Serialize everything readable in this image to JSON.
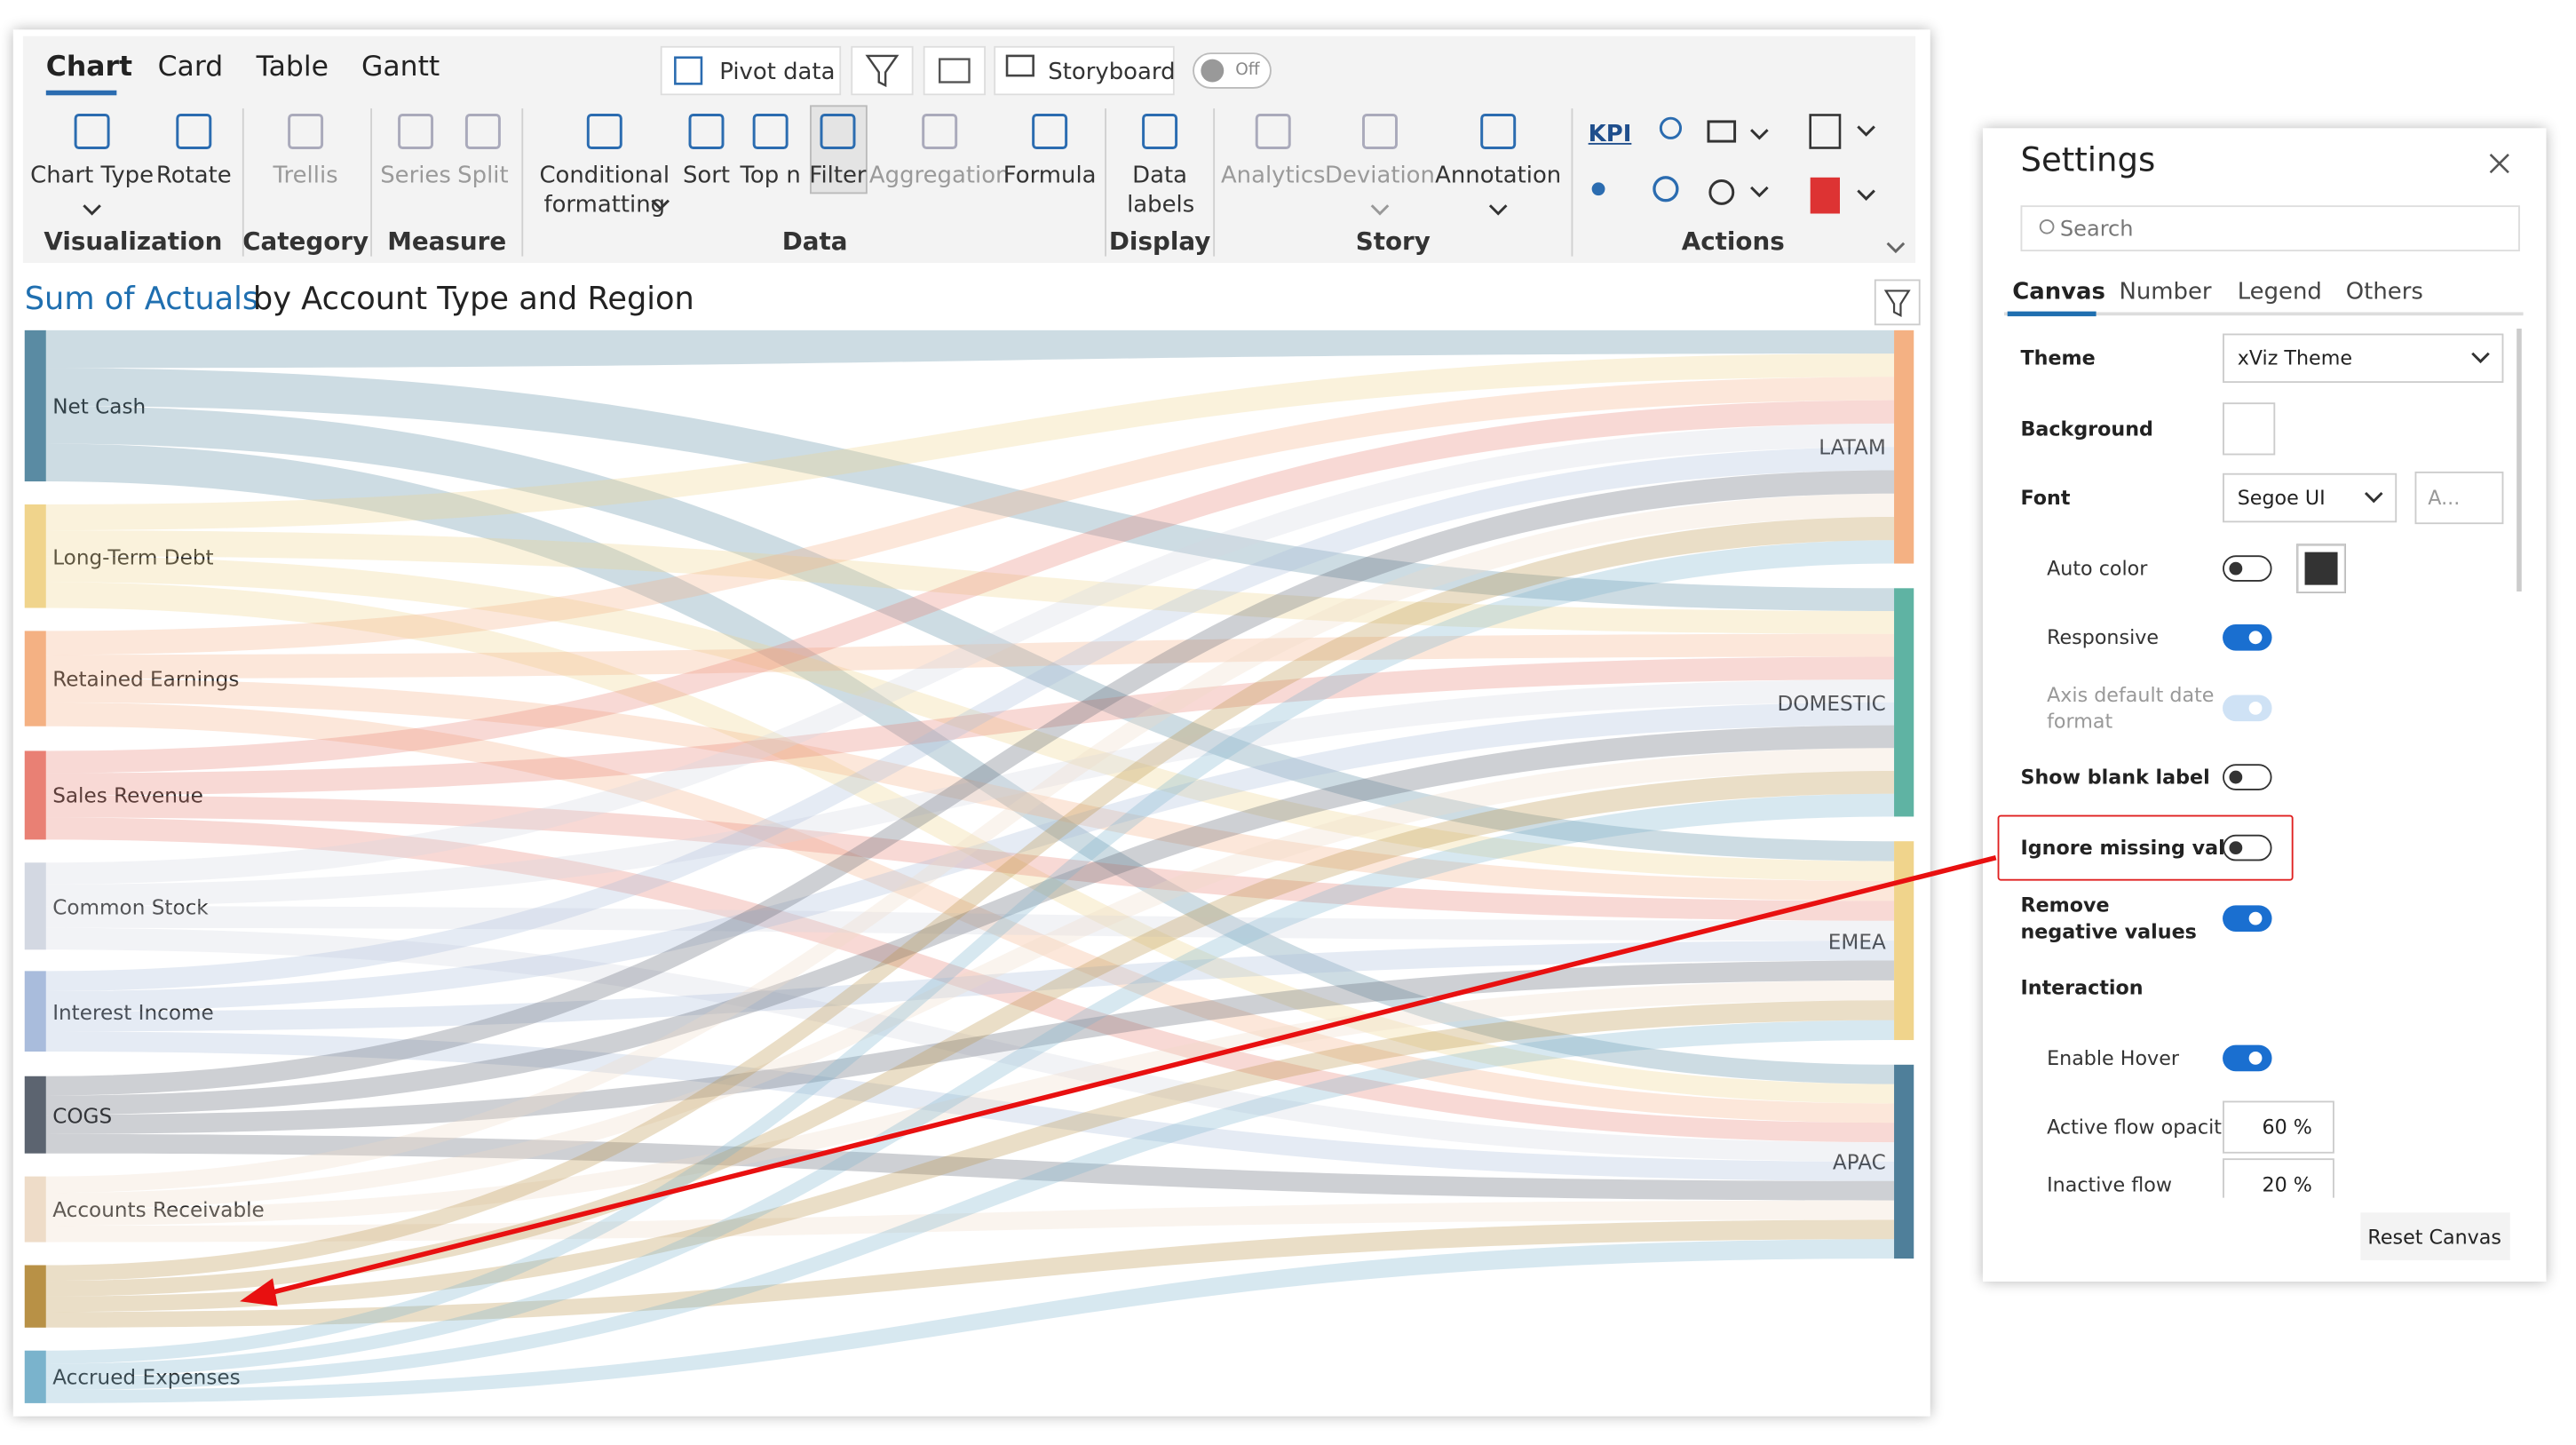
{
  "ribbon": {
    "tabs": [
      "Chart",
      "Card",
      "Table",
      "Gantt"
    ],
    "pivot": "Pivot data",
    "storyboard": "Storyboard",
    "toggle": "Off",
    "items": [
      {
        "label": "Chart Type"
      },
      {
        "label": "Rotate"
      },
      {
        "label": "Trellis",
        "disabled": true
      },
      {
        "label": "Series",
        "disabled": true
      },
      {
        "label": "Split",
        "disabled": true
      },
      {
        "label": "Conditional formatting"
      },
      {
        "label": "Sort"
      },
      {
        "label": "Top n"
      },
      {
        "label": "Filter"
      },
      {
        "label": "Aggregation",
        "disabled": true
      },
      {
        "label": "Formula"
      },
      {
        "label": "Data labels"
      },
      {
        "label": "Analytics",
        "disabled": true
      },
      {
        "label": "Deviation",
        "disabled": true
      },
      {
        "label": "Annotation"
      }
    ],
    "groups": [
      "Visualization",
      "Category",
      "Measure",
      "Data",
      "Display",
      "Story",
      "Actions"
    ],
    "kpi": "KPI"
  },
  "chart": {
    "title_highlight": "Sum of Actuals",
    "title_rest": "by Account Type and Region",
    "sources": [
      {
        "label": "Net Cash",
        "color": "#5a8ba3"
      },
      {
        "label": "Long-Term Debt",
        "color": "#f0d48c"
      },
      {
        "label": "Retained Earnings",
        "color": "#f4b183"
      },
      {
        "label": "Sales Revenue",
        "color": "#e98074"
      },
      {
        "label": "Common Stock",
        "color": "#d3d8e2"
      },
      {
        "label": "Interest Income",
        "color": "#a9bcdc"
      },
      {
        "label": "COGS",
        "color": "#5c6470"
      },
      {
        "label": "Accounts Receivable",
        "color": "#eedcc8"
      },
      {
        "label": null,
        "color": "#b89146"
      },
      {
        "label": "Accrued Expenses",
        "color": "#7ab3cc"
      }
    ],
    "targets": [
      {
        "label": "LATAM",
        "color": "#f4b183"
      },
      {
        "label": "DOMESTIC",
        "color": "#5fb3a3"
      },
      {
        "label": "EMEA",
        "color": "#f0d48c"
      },
      {
        "label": "APAC",
        "color": "#4f7f9a"
      }
    ]
  },
  "settings": {
    "title": "Settings",
    "search": "Search",
    "tabs": [
      "Canvas",
      "Number",
      "Legend",
      "Others"
    ],
    "rows": [
      {
        "label": "Theme",
        "select": "xViz Theme"
      },
      {
        "label": "Background"
      },
      {
        "label": "Font",
        "select": "Segoe UI",
        "input": "A..."
      },
      {
        "label": "Auto color",
        "toggle": false
      },
      {
        "label": "Responsive",
        "toggle": true
      },
      {
        "label": "Axis default date format",
        "toggle": true,
        "disabled": true
      },
      {
        "label": "Show blank label",
        "toggle": false
      },
      {
        "label": "Ignore missing value",
        "toggle": false
      },
      {
        "label": "Remove negative values",
        "toggle": true
      },
      {
        "label": "Interaction"
      },
      {
        "label": "Enable Hover",
        "toggle": true
      },
      {
        "label": "Active flow opacity",
        "input": "60 %"
      },
      {
        "label": "Inactive flow",
        "input": "20 %"
      }
    ],
    "reset": "Reset Canvas"
  }
}
